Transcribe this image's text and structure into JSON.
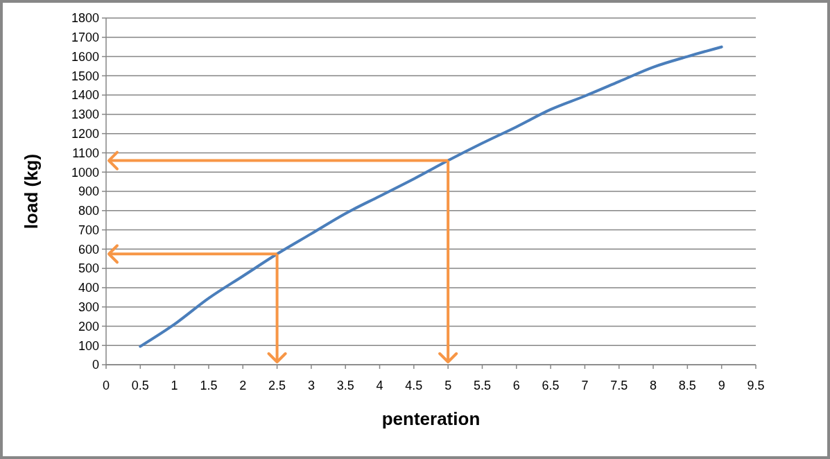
{
  "chart_data": {
    "type": "line",
    "xlabel": "penteration",
    "ylabel": "load (kg)",
    "x": [
      0.5,
      1,
      1.5,
      2,
      2.5,
      3,
      3.5,
      4,
      4.5,
      5,
      5.5,
      6,
      6.5,
      7,
      7.5,
      8,
      8.5,
      9
    ],
    "series": [
      {
        "color": "#4a7ebb",
        "values": [
          95,
          210,
          345,
          460,
          575,
          680,
          785,
          875,
          965,
          1060,
          1150,
          1235,
          1325,
          1395,
          1470,
          1545,
          1600,
          1650
        ]
      }
    ],
    "xlim": [
      0,
      9.5
    ],
    "xticks": [
      0,
      0.5,
      1,
      1.5,
      2,
      2.5,
      3,
      3.5,
      4,
      4.5,
      5,
      5.5,
      6,
      6.5,
      7,
      7.5,
      8,
      8.5,
      9,
      9.5
    ],
    "ylim": [
      0,
      1800
    ],
    "yticks": [
      0,
      100,
      200,
      300,
      400,
      500,
      600,
      700,
      800,
      900,
      1000,
      1100,
      1200,
      1300,
      1400,
      1500,
      1600,
      1700,
      1800
    ],
    "grid": "y",
    "marker": "none",
    "line_style": "solid",
    "ref_lines": [
      {
        "axis": "y",
        "value": 575,
        "color": "#f79646"
      },
      {
        "axis": "x",
        "value": 2.5,
        "color": "#f79646"
      },
      {
        "axis": "y",
        "value": 1060,
        "color": "#f79646"
      },
      {
        "axis": "x",
        "value": 5,
        "color": "#f79646"
      }
    ]
  }
}
